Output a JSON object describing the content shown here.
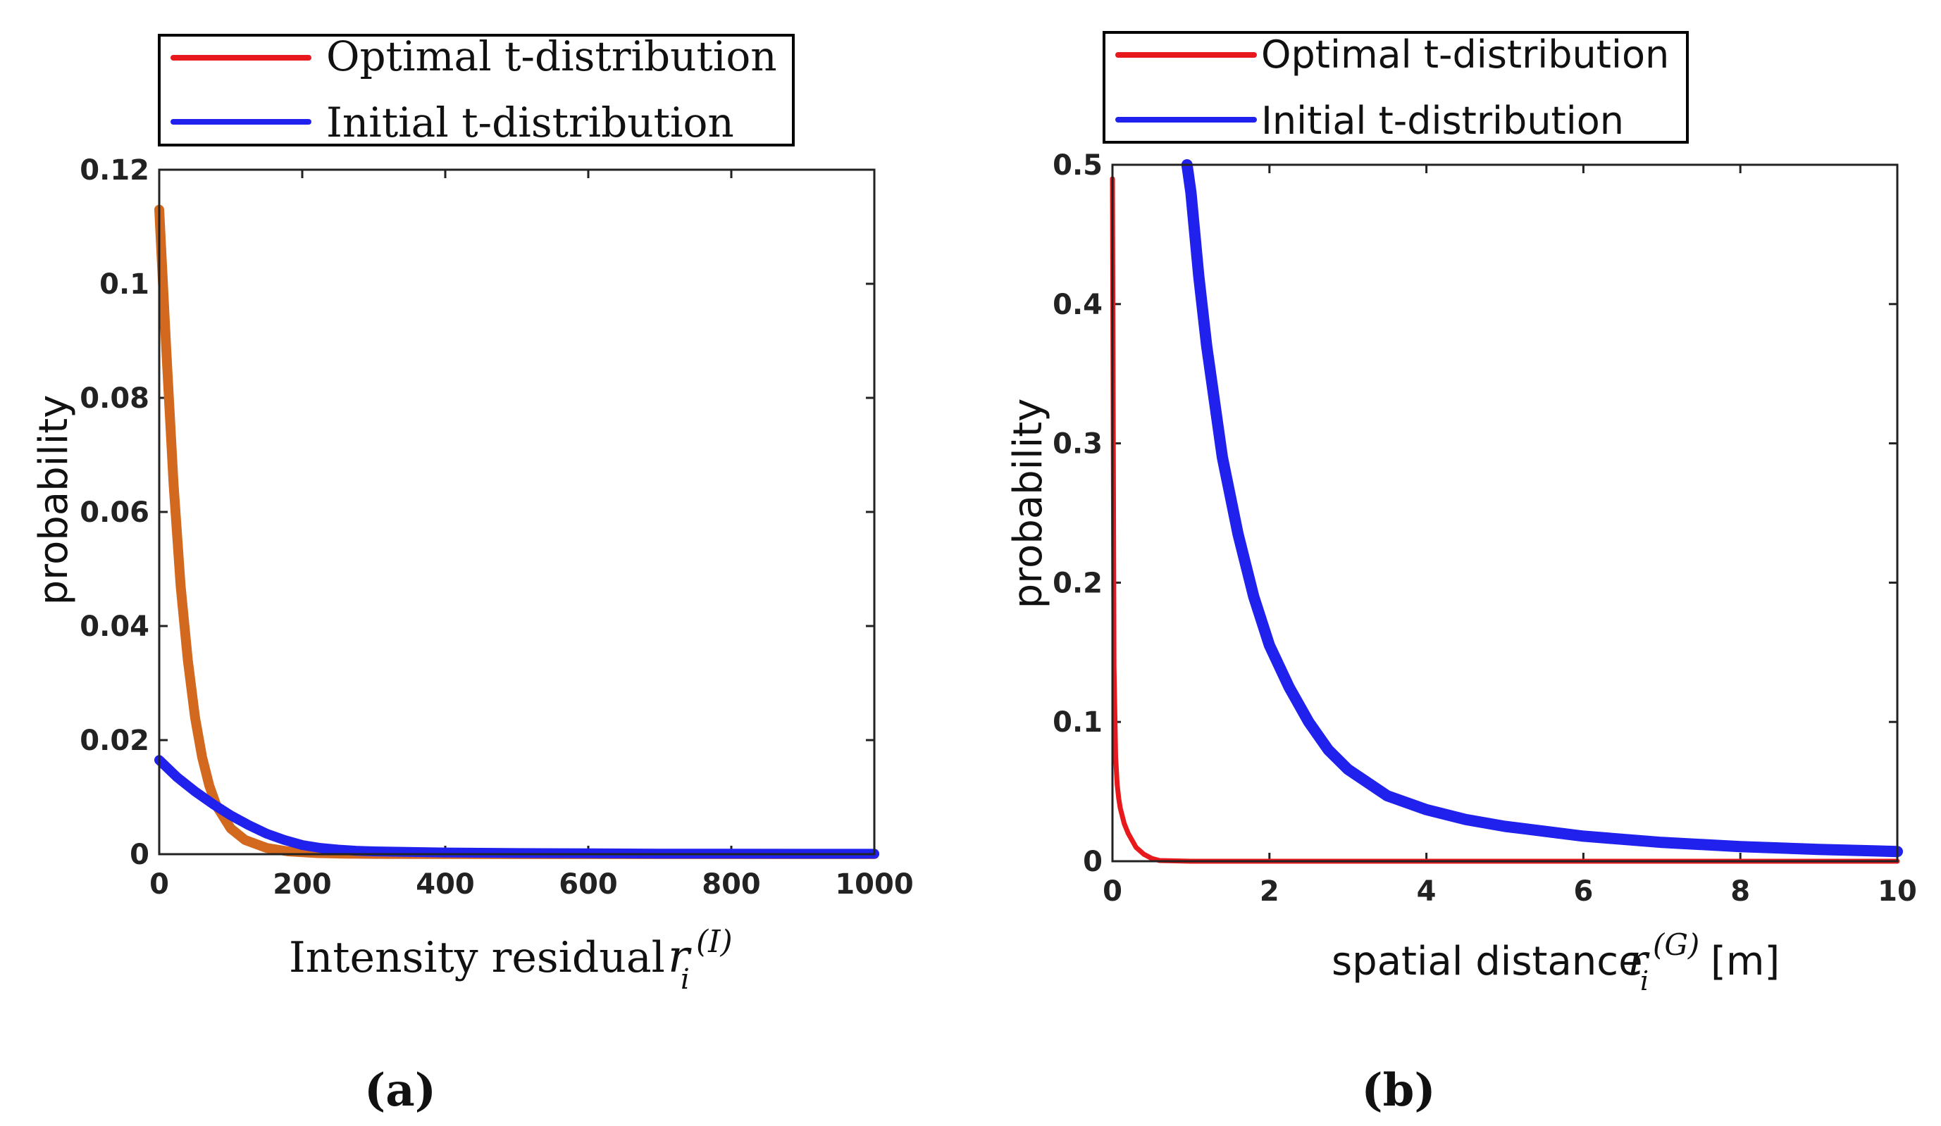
{
  "chart_data": [
    {
      "type": "line",
      "panel_label": "(a)",
      "xlabel": "Intensity residual",
      "xlabel_math": {
        "base": "r",
        "sub": "i",
        "sup": "(I)"
      },
      "ylabel": "probability",
      "xlim": [
        0,
        1000
      ],
      "ylim": [
        0,
        0.12
      ],
      "xticks": [
        0,
        200,
        400,
        600,
        800,
        1000
      ],
      "xtick_labels": [
        "0",
        "200",
        "400",
        "600",
        "800",
        "1000"
      ],
      "yticks": [
        0,
        0.02,
        0.04,
        0.06,
        0.08,
        0.1,
        0.12
      ],
      "ytick_labels": [
        "0",
        "0.02",
        "0.04",
        "0.06",
        "0.08",
        "0.1",
        "0.12"
      ],
      "grid": false,
      "legend_position": "top",
      "legend": [
        {
          "label": "Optimal t-distribution",
          "color": "#e8191c"
        },
        {
          "label": "Initial t-distribution",
          "color": "#2121ee"
        }
      ],
      "series": [
        {
          "name": "Optimal t-distribution",
          "color": "#d2691e",
          "x": [
            0,
            10,
            20,
            30,
            40,
            50,
            60,
            70,
            80,
            100,
            120,
            150,
            180,
            220,
            260,
            300,
            400,
            500,
            600,
            700,
            800,
            900,
            1000
          ],
          "y": [
            0.113,
            0.088,
            0.065,
            0.047,
            0.034,
            0.024,
            0.017,
            0.012,
            0.0085,
            0.0045,
            0.0025,
            0.0011,
            0.0005,
            0.0002,
            0.0001,
            5e-05,
            2e-05,
            1e-05,
            1e-05,
            1e-05,
            1e-05,
            1e-05,
            1e-05
          ]
        },
        {
          "name": "Initial t-distribution",
          "color": "#2121ee",
          "x": [
            0,
            25,
            50,
            75,
            100,
            125,
            150,
            175,
            200,
            225,
            250,
            275,
            300,
            400,
            500,
            600,
            700,
            800,
            900,
            1000
          ],
          "y": [
            0.0165,
            0.0135,
            0.011,
            0.0088,
            0.0068,
            0.0051,
            0.0036,
            0.0025,
            0.0016,
            0.0011,
            0.0008,
            0.0006,
            0.0005,
            0.0003,
            0.0002,
            0.00015,
            0.0001,
            0.0001,
            8e-05,
            8e-05
          ]
        }
      ]
    },
    {
      "type": "line",
      "panel_label": "(b)",
      "xlabel": "spatial distance",
      "xlabel_math": {
        "base": "r",
        "sub": "i",
        "sup": "(G)"
      },
      "xlabel_unit": "[m]",
      "ylabel": "probability",
      "xlim": [
        0,
        10
      ],
      "ylim": [
        0,
        0.5
      ],
      "xticks": [
        0,
        2,
        4,
        6,
        8,
        10
      ],
      "xtick_labels": [
        "0",
        "2",
        "4",
        "6",
        "8",
        "10"
      ],
      "yticks": [
        0,
        0.1,
        0.2,
        0.3,
        0.4,
        0.5
      ],
      "ytick_labels": [
        "0",
        "0.1",
        "0.2",
        "0.3",
        "0.4",
        "0.5"
      ],
      "grid": false,
      "legend_position": "top",
      "legend": [
        {
          "label": "Optimal t-distribution",
          "color": "#e8191c"
        },
        {
          "label": "Initial t-distribution",
          "color": "#2121ee"
        }
      ],
      "series": [
        {
          "name": "Optimal t-distribution",
          "color": "#e8191c",
          "x": [
            0.0,
            0.02,
            0.04,
            0.06,
            0.08,
            0.1,
            0.15,
            0.2,
            0.3,
            0.4,
            0.5,
            0.6,
            1,
            2,
            4,
            6,
            8,
            10
          ],
          "y": [
            0.49,
            0.14,
            0.075,
            0.055,
            0.045,
            0.038,
            0.027,
            0.02,
            0.01,
            0.005,
            0.002,
            0.0005,
            0.0,
            0.0,
            0.0,
            0.0,
            0.0,
            0.0
          ]
        },
        {
          "name": "Initial t-distribution",
          "color": "#2121ee",
          "x": [
            0.95,
            1.0,
            1.1,
            1.2,
            1.4,
            1.6,
            1.8,
            2.0,
            2.25,
            2.5,
            2.75,
            3.0,
            3.5,
            4.0,
            4.5,
            5.0,
            6.0,
            7.0,
            8.0,
            9.0,
            10.0
          ],
          "y": [
            0.5,
            0.48,
            0.42,
            0.37,
            0.29,
            0.235,
            0.19,
            0.155,
            0.125,
            0.1,
            0.08,
            0.066,
            0.047,
            0.037,
            0.03,
            0.025,
            0.018,
            0.0135,
            0.0105,
            0.0085,
            0.007
          ]
        }
      ]
    }
  ]
}
